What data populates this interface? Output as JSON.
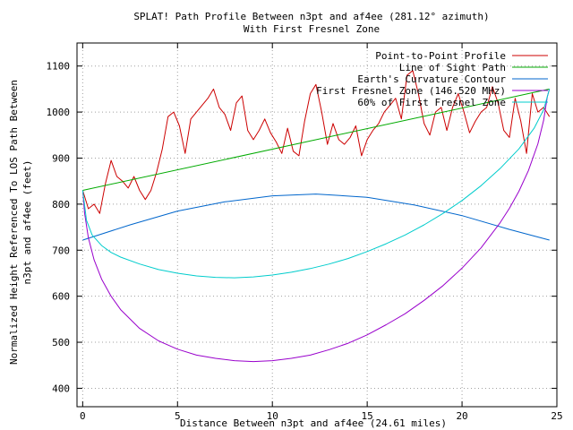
{
  "chart_data": {
    "type": "line",
    "title_line1": "SPLAT! Path Profile Between n3pt and af4ee (281.12° azimuth)",
    "title_line2": "With First Fresnel Zone",
    "xlabel": "Distance Between n3pt and af4ee (24.61 miles)",
    "ylabel_line1": "Normalized Height Referenced To LOS Path Between",
    "ylabel_line2": "n3pt and af4ee (feet)",
    "xlim": [
      -0.3,
      25
    ],
    "ylim": [
      360,
      1150
    ],
    "xticks": [
      0,
      5,
      10,
      15,
      20,
      25
    ],
    "yticks": [
      400,
      500,
      600,
      700,
      800,
      900,
      1000,
      1100
    ],
    "grid": true,
    "legend_position": "top-right",
    "series": [
      {
        "name": "Point-to-Point Profile",
        "color": "#cc0000",
        "x": [
          0,
          0.3,
          0.6,
          0.9,
          1.2,
          1.5,
          1.8,
          2.1,
          2.4,
          2.7,
          3.0,
          3.3,
          3.6,
          3.9,
          4.2,
          4.5,
          4.8,
          5.1,
          5.4,
          5.7,
          6.0,
          6.3,
          6.6,
          6.9,
          7.2,
          7.5,
          7.8,
          8.1,
          8.4,
          8.7,
          9.0,
          9.3,
          9.6,
          9.9,
          10.2,
          10.5,
          10.8,
          11.1,
          11.4,
          11.7,
          12.0,
          12.3,
          12.6,
          12.9,
          13.2,
          13.5,
          13.8,
          14.1,
          14.4,
          14.7,
          15.0,
          15.3,
          15.6,
          15.9,
          16.2,
          16.5,
          16.8,
          17.1,
          17.4,
          17.7,
          18.0,
          18.3,
          18.6,
          18.9,
          19.2,
          19.5,
          19.8,
          20.1,
          20.4,
          20.7,
          21.0,
          21.3,
          21.6,
          21.9,
          22.2,
          22.5,
          22.8,
          23.1,
          23.4,
          23.7,
          24.0,
          24.3,
          24.61
        ],
        "y": [
          830,
          790,
          800,
          780,
          845,
          895,
          860,
          850,
          835,
          860,
          830,
          810,
          830,
          870,
          920,
          990,
          1000,
          970,
          910,
          985,
          1000,
          1015,
          1030,
          1050,
          1010,
          995,
          960,
          1020,
          1035,
          960,
          940,
          960,
          985,
          955,
          935,
          910,
          965,
          915,
          905,
          980,
          1040,
          1060,
          1000,
          930,
          975,
          940,
          930,
          945,
          970,
          905,
          940,
          960,
          975,
          1000,
          1015,
          1030,
          985,
          1080,
          1090,
          1040,
          975,
          950,
          1000,
          1010,
          960,
          1010,
          1040,
          1000,
          955,
          980,
          1000,
          1010,
          1055,
          1020,
          960,
          945,
          1030,
          980,
          910,
          1040,
          1000,
          1010,
          990
        ]
      },
      {
        "name": "Line of Sight Path",
        "color": "#00aa00",
        "x": [
          0,
          24.61
        ],
        "y": [
          830,
          1050
        ]
      },
      {
        "name": "Earth's Curvature Contour",
        "color": "#0066cc",
        "x": [
          0,
          2.5,
          5,
          7.5,
          10,
          12.3,
          15,
          17.5,
          20,
          22.5,
          24.61
        ],
        "y": [
          722,
          755,
          785,
          805,
          818,
          822,
          815,
          798,
          775,
          745,
          722
        ]
      },
      {
        "name": "First Fresnel Zone (146.520 MHz)",
        "color": "#9900cc",
        "x": [
          0,
          0.1,
          0.3,
          0.6,
          1,
          1.5,
          2,
          3,
          4,
          5,
          6,
          7,
          8,
          9,
          10,
          11,
          12,
          13,
          14,
          15,
          16,
          17,
          18,
          19,
          20,
          21,
          22,
          22.5,
          23,
          23.5,
          24,
          24.3,
          24.5,
          24.61
        ],
        "y": [
          830,
          780,
          727,
          679,
          637,
          600,
          571,
          530,
          503,
          485,
          472,
          465,
          460,
          458,
          460,
          465,
          472,
          484,
          498,
          516,
          538,
          562,
          591,
          623,
          661,
          705,
          759,
          791,
          828,
          873,
          931,
          982,
          1034,
          1050
        ]
      },
      {
        "name": "60% of First Fresnel Zone",
        "color": "#00cccc",
        "x": [
          0,
          0.2,
          0.5,
          1,
          1.5,
          2,
          3,
          4,
          5,
          6,
          7,
          8,
          9,
          10,
          11,
          12,
          13,
          14,
          15,
          16,
          17,
          18,
          19,
          20,
          21,
          22,
          23,
          23.8,
          24.3,
          24.61
        ],
        "y": [
          830,
          765,
          733,
          710,
          695,
          685,
          670,
          658,
          650,
          644,
          641,
          640,
          642,
          646,
          652,
          660,
          670,
          682,
          697,
          714,
          733,
          755,
          780,
          808,
          840,
          877,
          920,
          965,
          1005,
          1050
        ]
      }
    ]
  }
}
